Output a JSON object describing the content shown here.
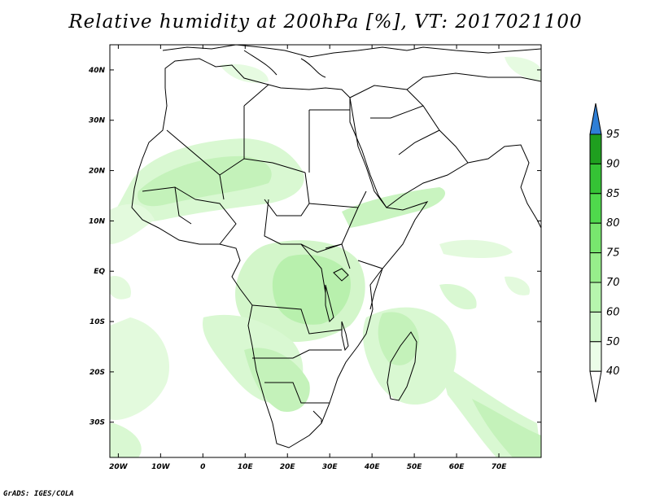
{
  "title": "Relative humidity at 200hPa [%], VT: 2017021100",
  "credit": "GrADS: IGES/COLA",
  "map": {
    "projection": "latlon",
    "lon_range": [
      -22,
      80
    ],
    "lat_range": [
      -37,
      45
    ],
    "lon_ticks": [
      {
        "value": -20,
        "label": "20W"
      },
      {
        "value": -10,
        "label": "10W"
      },
      {
        "value": 0,
        "label": "0"
      },
      {
        "value": 10,
        "label": "10E"
      },
      {
        "value": 20,
        "label": "20E"
      },
      {
        "value": 30,
        "label": "30E"
      },
      {
        "value": 40,
        "label": "40E"
      },
      {
        "value": 50,
        "label": "50E"
      },
      {
        "value": 60,
        "label": "60E"
      },
      {
        "value": 70,
        "label": "70E"
      }
    ],
    "lat_ticks": [
      {
        "value": 40,
        "label": "40N"
      },
      {
        "value": 30,
        "label": "30N"
      },
      {
        "value": 20,
        "label": "20N"
      },
      {
        "value": 10,
        "label": "10N"
      },
      {
        "value": 0,
        "label": "EQ"
      },
      {
        "value": -10,
        "label": "10S"
      },
      {
        "value": -20,
        "label": "20S"
      },
      {
        "value": -30,
        "label": "30S"
      }
    ]
  },
  "colorbar": {
    "levels": [
      "40",
      "50",
      "60",
      "70",
      "75",
      "80",
      "85",
      "90",
      "95"
    ],
    "colors": [
      "#ebfde8",
      "#d1f9cc",
      "#b6f5ad",
      "#97ee8b",
      "#78e66e",
      "#4fd94c",
      "#35c335",
      "#1f9f1f",
      "#2f7fd6"
    ],
    "under_color": "#ffffff",
    "over_color": "#2f7fd6"
  },
  "colors": {
    "coastline": "#000000",
    "humidity_light": "#d9f8d2",
    "humidity_medium": "#b8f0ad"
  }
}
